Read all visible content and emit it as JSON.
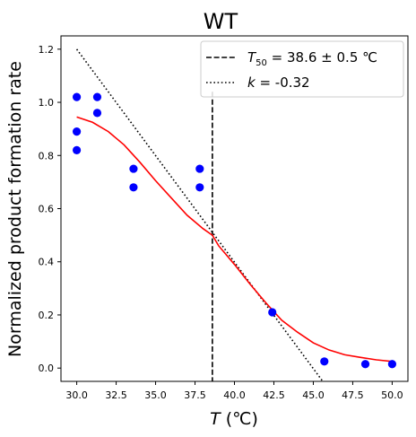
{
  "chart_data": {
    "type": "scatter",
    "title": "WT",
    "xlabel_var": "T",
    "xlabel_unit": " (℃)",
    "ylabel": "Normalized product formation rate",
    "xlim": [
      29.0,
      51.0
    ],
    "ylim": [
      -0.05,
      1.25
    ],
    "xticks": [
      30.0,
      32.5,
      35.0,
      37.5,
      40.0,
      42.5,
      45.0,
      47.5,
      50.0
    ],
    "xtick_labels": [
      "30.0",
      "32.5",
      "35.0",
      "37.5",
      "40.0",
      "42.5",
      "45.0",
      "47.5",
      "50.0"
    ],
    "yticks": [
      0.0,
      0.2,
      0.4,
      0.6,
      0.8,
      1.0,
      1.2
    ],
    "ytick_labels": [
      "0.0",
      "0.2",
      "0.4",
      "0.6",
      "0.8",
      "1.0",
      "1.2"
    ],
    "grid": false,
    "legend_position": "top-right",
    "points": [
      {
        "x": 30.0,
        "y": 1.02
      },
      {
        "x": 30.0,
        "y": 0.89
      },
      {
        "x": 30.0,
        "y": 0.82
      },
      {
        "x": 31.3,
        "y": 1.02
      },
      {
        "x": 31.3,
        "y": 0.96
      },
      {
        "x": 33.6,
        "y": 0.75
      },
      {
        "x": 33.6,
        "y": 0.68
      },
      {
        "x": 37.8,
        "y": 0.75
      },
      {
        "x": 37.8,
        "y": 0.68
      },
      {
        "x": 42.4,
        "y": 0.21
      },
      {
        "x": 45.7,
        "y": 0.025
      },
      {
        "x": 48.3,
        "y": 0.015
      },
      {
        "x": 50.0,
        "y": 0.015
      }
    ],
    "fit_curve": {
      "x": [
        30.0,
        31.0,
        32.0,
        33.0,
        34.0,
        35.0,
        36.0,
        37.0,
        38.0,
        38.6,
        39.0,
        40.0,
        41.0,
        42.0,
        43.0,
        44.0,
        45.0,
        46.0,
        47.0,
        48.0,
        49.0,
        50.0
      ],
      "y": [
        0.945,
        0.925,
        0.89,
        0.84,
        0.775,
        0.705,
        0.64,
        0.575,
        0.525,
        0.5,
        0.46,
        0.39,
        0.315,
        0.245,
        0.18,
        0.135,
        0.095,
        0.068,
        0.05,
        0.04,
        0.031,
        0.025
      ]
    },
    "t50_line": {
      "x": 38.6,
      "y_top": 1.04
    },
    "tangent_line": {
      "x": [
        30.0,
        45.6
      ],
      "y": [
        1.2,
        -0.05
      ]
    },
    "legend": [
      {
        "style": "dashed",
        "label_var": "T",
        "label_sub": "50",
        "label_rest": " = 38.6 ± 0.5 ℃"
      },
      {
        "style": "dotted",
        "label_var": "k",
        "label_rest": " = -0.32"
      }
    ],
    "colors": {
      "points": "#0000ff",
      "fit": "#ff0000",
      "lines": "#000000"
    }
  }
}
